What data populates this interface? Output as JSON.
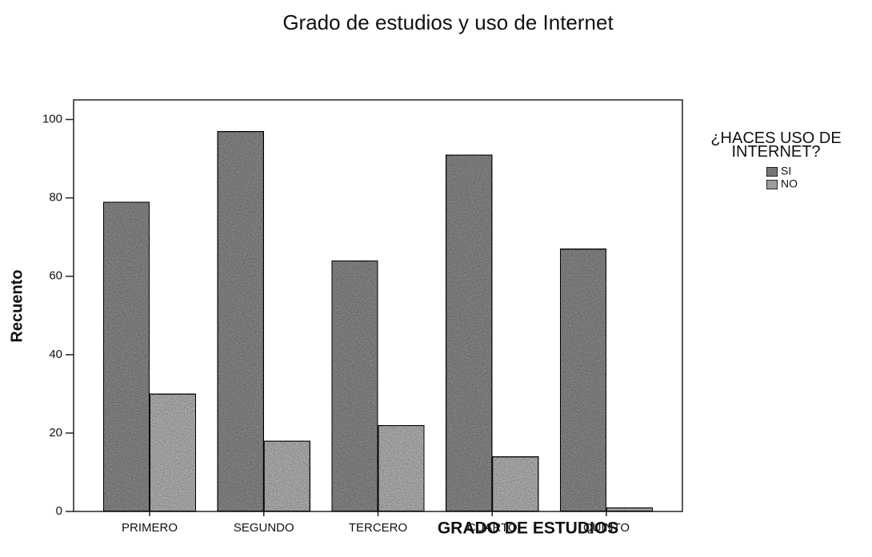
{
  "chart_data": {
    "type": "bar",
    "title": "Grado de estudios y uso de Internet",
    "x_label": "GRADO DE ESTUDIOS",
    "y_label": "Recuento",
    "legend_title": "¿HACES USO DE INTERNET?",
    "categories": [
      "PRIMERO",
      "SEGUNDO",
      "TERCERO",
      "CUARTO",
      "QUINTO"
    ],
    "series": [
      {
        "name": "SI",
        "color": "#8a8a8a",
        "values": [
          79,
          97,
          64,
          91,
          67
        ]
      },
      {
        "name": "NO",
        "color": "#b4b4b4",
        "values": [
          30,
          18,
          22,
          14,
          1
        ]
      }
    ],
    "ylim": [
      0,
      105
    ],
    "yticks": [
      0,
      20,
      40,
      60,
      80,
      100
    ]
  }
}
